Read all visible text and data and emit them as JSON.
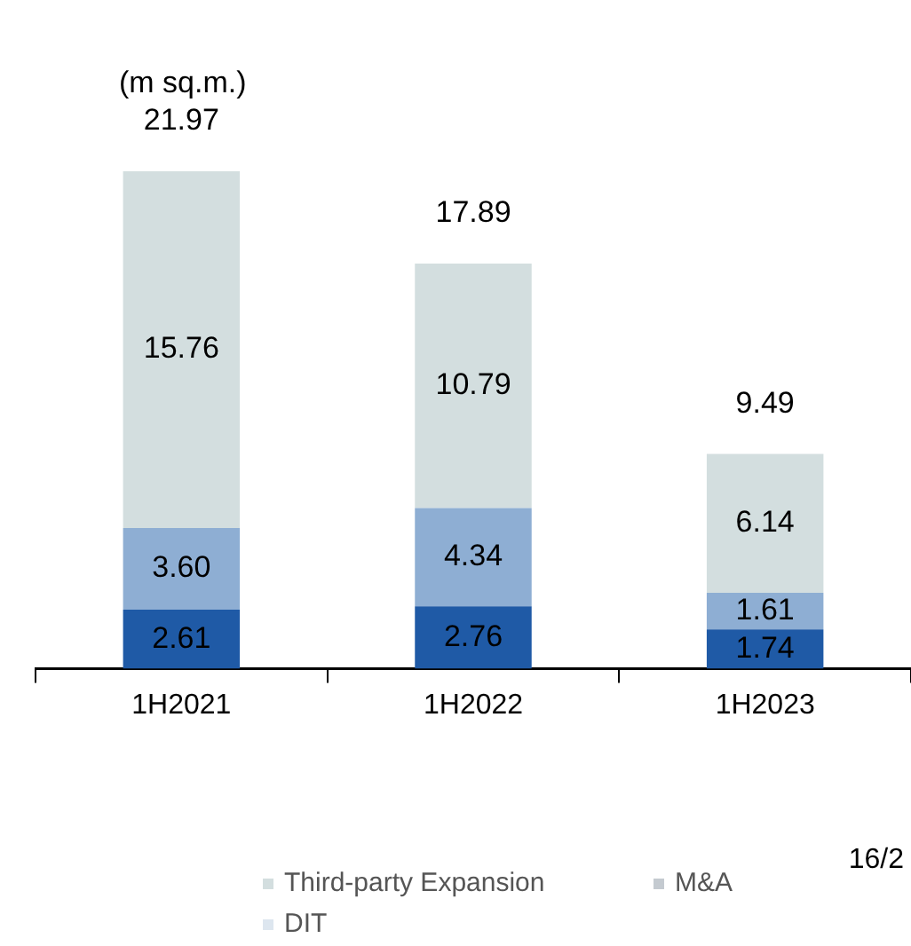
{
  "chart_data": {
    "type": "bar",
    "subtitle": "(m sq.m.)",
    "stacked": true,
    "legend": "bottom",
    "categories": [
      "1H2021",
      "1H2022",
      "1H2023"
    ],
    "series": [
      {
        "color": "#1f5aa6",
        "values": [
          2.61,
          2.76,
          1.74
        ],
        "value_labels": [
          "2.61",
          "2.76",
          "1.74"
        ]
      },
      {
        "color": "#8eaed3",
        "values": [
          3.6,
          4.34,
          1.61
        ],
        "value_labels": [
          "3.60",
          "4.34",
          "1.61"
        ]
      },
      {
        "name": "Third-party Expansion",
        "color": "#d3dedf",
        "values": [
          15.76,
          10.79,
          6.14
        ],
        "value_labels": [
          "15.76",
          "10.79",
          "6.14"
        ]
      },
      {
        "name": "M&A",
        "color": "#c4cad0",
        "values": [
          null,
          null,
          null
        ]
      },
      {
        "name": "DIT",
        "color": "#dde6ef",
        "values": [
          null,
          null,
          null
        ]
      }
    ],
    "totals": [
      "21.97",
      "17.89",
      "9.49"
    ],
    "annotations": [
      "16/2"
    ]
  }
}
